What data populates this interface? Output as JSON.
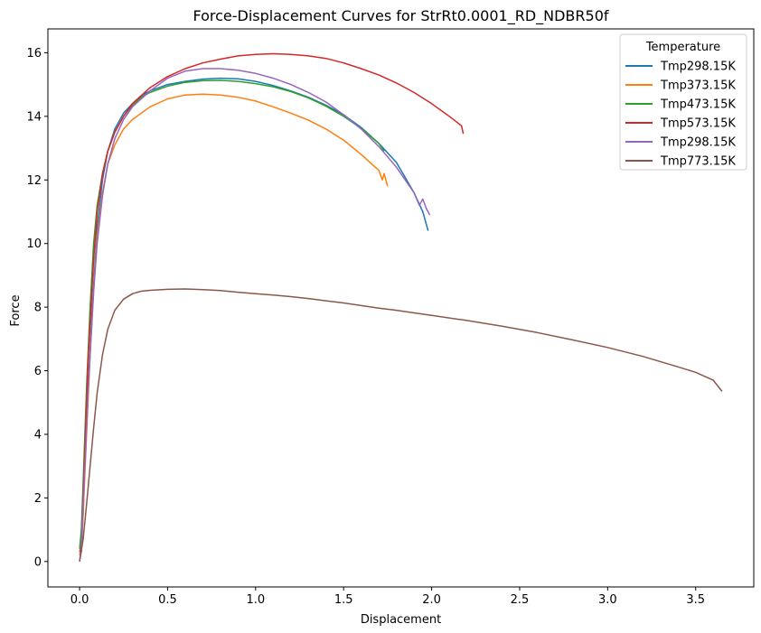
{
  "chart_data": {
    "type": "line",
    "title": "Force-Displacement Curves for StrRt0.0001_RD_NDBR50f",
    "xlabel": "Displacement",
    "ylabel": "Force",
    "xlim": [
      -0.18,
      3.83
    ],
    "ylim": [
      -0.8,
      16.75
    ],
    "xticks": [
      0.0,
      0.5,
      1.0,
      1.5,
      2.0,
      2.5,
      3.0,
      3.5
    ],
    "xtick_labels": [
      "0.0",
      "0.5",
      "1.0",
      "1.5",
      "2.0",
      "2.5",
      "3.0",
      "3.5"
    ],
    "yticks": [
      0,
      2,
      4,
      6,
      8,
      10,
      12,
      14,
      16
    ],
    "ytick_labels": [
      "0",
      "2",
      "4",
      "6",
      "8",
      "10",
      "12",
      "14",
      "16"
    ],
    "grid": false,
    "legend": {
      "title": "Temperature",
      "placement": "top-right"
    },
    "series": [
      {
        "name": "Tmp298.15K",
        "color": "#1f77b4",
        "x": [
          0.0,
          0.01,
          0.02,
          0.03,
          0.05,
          0.07,
          0.1,
          0.13,
          0.16,
          0.2,
          0.25,
          0.3,
          0.35,
          0.4,
          0.5,
          0.6,
          0.7,
          0.8,
          0.9,
          1.0,
          1.1,
          1.2,
          1.3,
          1.4,
          1.5,
          1.6,
          1.7,
          1.8,
          1.9,
          1.95,
          1.98
        ],
        "y": [
          0.3,
          0.3,
          1.5,
          3.0,
          5.5,
          7.8,
          10.5,
          12.0,
          12.9,
          13.6,
          14.1,
          14.4,
          14.65,
          14.8,
          15.0,
          15.1,
          15.17,
          15.2,
          15.18,
          15.1,
          14.97,
          14.8,
          14.6,
          14.35,
          14.05,
          13.65,
          13.15,
          12.55,
          11.6,
          11.0,
          10.4
        ]
      },
      {
        "name": "Tmp373.15K",
        "color": "#ff7f0e",
        "x": [
          0.0,
          0.01,
          0.02,
          0.04,
          0.06,
          0.08,
          0.1,
          0.13,
          0.16,
          0.2,
          0.25,
          0.3,
          0.4,
          0.5,
          0.6,
          0.7,
          0.8,
          0.9,
          1.0,
          1.1,
          1.2,
          1.3,
          1.4,
          1.5,
          1.6,
          1.65,
          1.7,
          1.72,
          1.73,
          1.75
        ],
        "y": [
          0.2,
          0.5,
          1.5,
          4.0,
          6.5,
          8.5,
          10.2,
          11.6,
          12.5,
          13.1,
          13.6,
          13.9,
          14.3,
          14.55,
          14.67,
          14.7,
          14.67,
          14.6,
          14.48,
          14.3,
          14.1,
          13.88,
          13.6,
          13.25,
          12.8,
          12.55,
          12.3,
          12.0,
          12.2,
          11.8
        ]
      },
      {
        "name": "Tmp473.15K",
        "color": "#2ca02c",
        "x": [
          0.0,
          0.01,
          0.02,
          0.04,
          0.06,
          0.08,
          0.1,
          0.13,
          0.16,
          0.2,
          0.25,
          0.3,
          0.35,
          0.4,
          0.5,
          0.6,
          0.7,
          0.8,
          0.9,
          1.0,
          1.1,
          1.2,
          1.3,
          1.4,
          1.5,
          1.6,
          1.7,
          1.73
        ],
        "y": [
          0.4,
          1.0,
          2.5,
          5.5,
          8.0,
          10.0,
          11.2,
          12.2,
          12.9,
          13.5,
          14.0,
          14.35,
          14.6,
          14.75,
          14.95,
          15.07,
          15.12,
          15.13,
          15.1,
          15.03,
          14.93,
          14.78,
          14.58,
          14.32,
          14.0,
          13.62,
          13.15,
          12.9
        ]
      },
      {
        "name": "Tmp573.15K",
        "color": "#d62728",
        "x": [
          0.0,
          0.01,
          0.03,
          0.05,
          0.08,
          0.1,
          0.13,
          0.16,
          0.2,
          0.25,
          0.3,
          0.4,
          0.5,
          0.6,
          0.7,
          0.8,
          0.9,
          1.0,
          1.1,
          1.2,
          1.3,
          1.4,
          1.5,
          1.6,
          1.7,
          1.8,
          1.9,
          2.0,
          2.1,
          2.17,
          2.18
        ],
        "y": [
          0.3,
          0.5,
          3.5,
          6.5,
          9.5,
          11.0,
          12.2,
          12.9,
          13.5,
          14.0,
          14.4,
          14.9,
          15.25,
          15.5,
          15.68,
          15.8,
          15.9,
          15.95,
          15.97,
          15.95,
          15.9,
          15.82,
          15.68,
          15.5,
          15.3,
          15.05,
          14.75,
          14.4,
          14.0,
          13.7,
          13.45
        ]
      },
      {
        "name": "Tmp298.15K",
        "color": "#9467bd",
        "x": [
          0.0,
          0.01,
          0.03,
          0.05,
          0.08,
          0.1,
          0.13,
          0.16,
          0.2,
          0.25,
          0.3,
          0.4,
          0.5,
          0.6,
          0.7,
          0.8,
          0.9,
          1.0,
          1.1,
          1.2,
          1.3,
          1.4,
          1.5,
          1.6,
          1.7,
          1.8,
          1.9,
          1.93,
          1.95,
          1.97,
          1.99
        ],
        "y": [
          0.0,
          0.5,
          3.0,
          5.5,
          8.5,
          10.0,
          11.5,
          12.5,
          13.3,
          13.9,
          14.3,
          14.8,
          15.2,
          15.42,
          15.5,
          15.5,
          15.45,
          15.35,
          15.2,
          15.0,
          14.75,
          14.45,
          14.05,
          13.6,
          13.05,
          12.4,
          11.6,
          11.2,
          11.4,
          11.1,
          10.9
        ]
      },
      {
        "name": "Tmp773.15K",
        "color": "#8c564b",
        "x": [
          0.0,
          0.02,
          0.04,
          0.06,
          0.08,
          0.1,
          0.13,
          0.16,
          0.2,
          0.25,
          0.3,
          0.35,
          0.4,
          0.5,
          0.6,
          0.7,
          0.8,
          0.9,
          1.0,
          1.1,
          1.2,
          1.3,
          1.4,
          1.5,
          1.6,
          1.7,
          1.8,
          1.9,
          2.0,
          2.2,
          2.4,
          2.6,
          2.8,
          3.0,
          3.2,
          3.4,
          3.5,
          3.6,
          3.65
        ],
        "y": [
          0.0,
          0.7,
          1.8,
          3.0,
          4.2,
          5.3,
          6.5,
          7.3,
          7.9,
          8.25,
          8.42,
          8.5,
          8.53,
          8.56,
          8.57,
          8.55,
          8.52,
          8.47,
          8.42,
          8.38,
          8.33,
          8.27,
          8.2,
          8.13,
          8.05,
          7.97,
          7.9,
          7.82,
          7.74,
          7.58,
          7.4,
          7.2,
          6.97,
          6.73,
          6.45,
          6.12,
          5.95,
          5.7,
          5.35
        ]
      }
    ]
  }
}
